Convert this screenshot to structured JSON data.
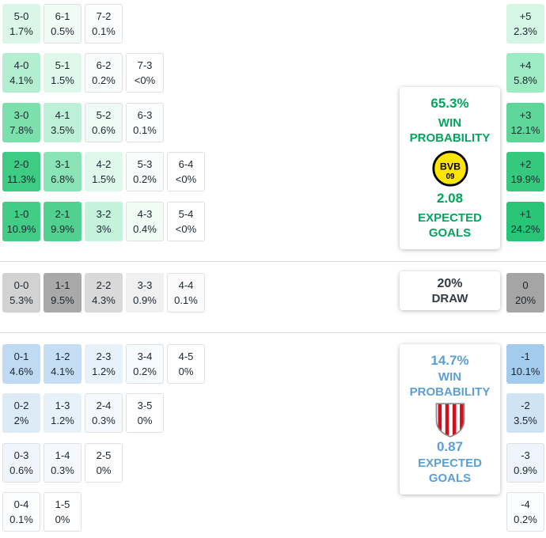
{
  "colors": {
    "background": "#ffffff",
    "cell_text": "#1b2630",
    "home_accent": "#00a55e",
    "away_accent": "#5b9ed6",
    "draw_text": "#333b42",
    "divider": "#dcdcdc",
    "cell_border": "#e0e0e0",
    "bvb_yellow": "#ffe600",
    "athletic_red": "#d0101d"
  },
  "chart_data": {
    "type": "heatmap",
    "description": "Correct-score probability matrix with goal-margin distribution, win/draw probabilities and expected goals",
    "home_score_rows": [
      [
        {
          "score": "5-0",
          "pct": "1.7%",
          "bg": "#d9f6e8"
        },
        {
          "score": "6-1",
          "pct": "0.5%",
          "bg": "#f0fbf6"
        },
        {
          "score": "7-2",
          "pct": "0.1%",
          "bg": "#fcfefd"
        }
      ],
      [
        {
          "score": "4-0",
          "pct": "4.1%",
          "bg": "#b2eecf"
        },
        {
          "score": "5-1",
          "pct": "1.5%",
          "bg": "#def8eb"
        },
        {
          "score": "6-2",
          "pct": "0.2%",
          "bg": "#f8fdfb"
        },
        {
          "score": "7-3",
          "pct": "<0%",
          "bg": "#ffffff"
        }
      ],
      [
        {
          "score": "3-0",
          "pct": "7.8%",
          "bg": "#7ce0ad"
        },
        {
          "score": "4-1",
          "pct": "3.5%",
          "bg": "#bdf0d6"
        },
        {
          "score": "5-2",
          "pct": "0.6%",
          "bg": "#eefaf4"
        },
        {
          "score": "6-3",
          "pct": "0.1%",
          "bg": "#fcfefd"
        }
      ],
      [
        {
          "score": "2-0",
          "pct": "11.3%",
          "bg": "#3ecb84"
        },
        {
          "score": "3-1",
          "pct": "6.8%",
          "bg": "#8be4b5"
        },
        {
          "score": "4-2",
          "pct": "1.5%",
          "bg": "#def8eb"
        },
        {
          "score": "5-3",
          "pct": "0.2%",
          "bg": "#f8fdfb"
        },
        {
          "score": "6-4",
          "pct": "<0%",
          "bg": "#ffffff"
        }
      ],
      [
        {
          "score": "1-0",
          "pct": "10.9%",
          "bg": "#42cc86"
        },
        {
          "score": "2-1",
          "pct": "9.9%",
          "bg": "#52d08f"
        },
        {
          "score": "3-2",
          "pct": "3%",
          "bg": "#c5f2da"
        },
        {
          "score": "4-3",
          "pct": "0.4%",
          "bg": "#f2fcf7"
        },
        {
          "score": "5-4",
          "pct": "<0%",
          "bg": "#ffffff"
        }
      ]
    ],
    "draw_score_row": [
      {
        "score": "0-0",
        "pct": "5.3%",
        "bg": "#d2d2d2"
      },
      {
        "score": "1-1",
        "pct": "9.5%",
        "bg": "#a9a9a9"
      },
      {
        "score": "2-2",
        "pct": "4.3%",
        "bg": "#d9d9d9"
      },
      {
        "score": "3-3",
        "pct": "0.9%",
        "bg": "#f0f0f0"
      },
      {
        "score": "4-4",
        "pct": "0.1%",
        "bg": "#fbfbfb"
      }
    ],
    "away_score_rows": [
      [
        {
          "score": "0-1",
          "pct": "4.6%",
          "bg": "#bfdaf2"
        },
        {
          "score": "1-2",
          "pct": "4.1%",
          "bg": "#c6def3"
        },
        {
          "score": "2-3",
          "pct": "1.2%",
          "bg": "#e7f1fa"
        },
        {
          "score": "3-4",
          "pct": "0.2%",
          "bg": "#f8fbfd"
        },
        {
          "score": "4-5",
          "pct": "0%",
          "bg": "#ffffff"
        }
      ],
      [
        {
          "score": "0-2",
          "pct": "2%",
          "bg": "#ddebf7"
        },
        {
          "score": "1-3",
          "pct": "1.2%",
          "bg": "#e7f1fa"
        },
        {
          "score": "2-4",
          "pct": "0.3%",
          "bg": "#f5f9fd"
        },
        {
          "score": "3-5",
          "pct": "0%",
          "bg": "#ffffff"
        }
      ],
      [
        {
          "score": "0-3",
          "pct": "0.6%",
          "bg": "#eff5fb"
        },
        {
          "score": "1-4",
          "pct": "0.3%",
          "bg": "#f5f9fd"
        },
        {
          "score": "2-5",
          "pct": "0%",
          "bg": "#ffffff"
        }
      ],
      [
        {
          "score": "0-4",
          "pct": "0.1%",
          "bg": "#fbfdfe"
        },
        {
          "score": "1-5",
          "pct": "0%",
          "bg": "#ffffff"
        }
      ]
    ],
    "margin_column": [
      {
        "margin": "+5",
        "pct": "2.3%",
        "bg": "#d5f5e5",
        "section": "home"
      },
      {
        "margin": "+4",
        "pct": "5.8%",
        "bg": "#9debc2",
        "section": "home"
      },
      {
        "margin": "+3",
        "pct": "12.1%",
        "bg": "#5dd69a",
        "section": "home"
      },
      {
        "margin": "+2",
        "pct": "19.9%",
        "bg": "#35c97e",
        "section": "home"
      },
      {
        "margin": "+1",
        "pct": "24.2%",
        "bg": "#28c577",
        "section": "home"
      },
      {
        "margin": "0",
        "pct": "20%",
        "bg": "#a5a5a5",
        "section": "draw"
      },
      {
        "margin": "-1",
        "pct": "10.1%",
        "bg": "#a3cbee",
        "section": "away"
      },
      {
        "margin": "-2",
        "pct": "3.5%",
        "bg": "#cfe3f5",
        "section": "away"
      },
      {
        "margin": "-3",
        "pct": "0.9%",
        "bg": "#edf4fb",
        "section": "away"
      },
      {
        "margin": "-4",
        "pct": "0.2%",
        "bg": "#fafcfe",
        "section": "away"
      }
    ],
    "home_panel": {
      "probability": "65.3%",
      "win_label_line1": "WIN",
      "win_label_line2": "PROBABILITY",
      "expected_goals": "2.08",
      "goals_label_line1": "EXPECTED",
      "goals_label_line2": "GOALS",
      "logo": "borussia-dortmund-crest",
      "logo_text_top": "BVB",
      "logo_text_bottom": "09"
    },
    "draw_panel": {
      "probability": "20%",
      "label": "DRAW"
    },
    "away_panel": {
      "probability": "14.7%",
      "win_label_line1": "WIN",
      "win_label_line2": "PROBABILITY",
      "expected_goals": "0.87",
      "goals_label_line1": "EXPECTED",
      "goals_label_line2": "GOALS",
      "logo": "athletic-bilbao-crest"
    }
  }
}
